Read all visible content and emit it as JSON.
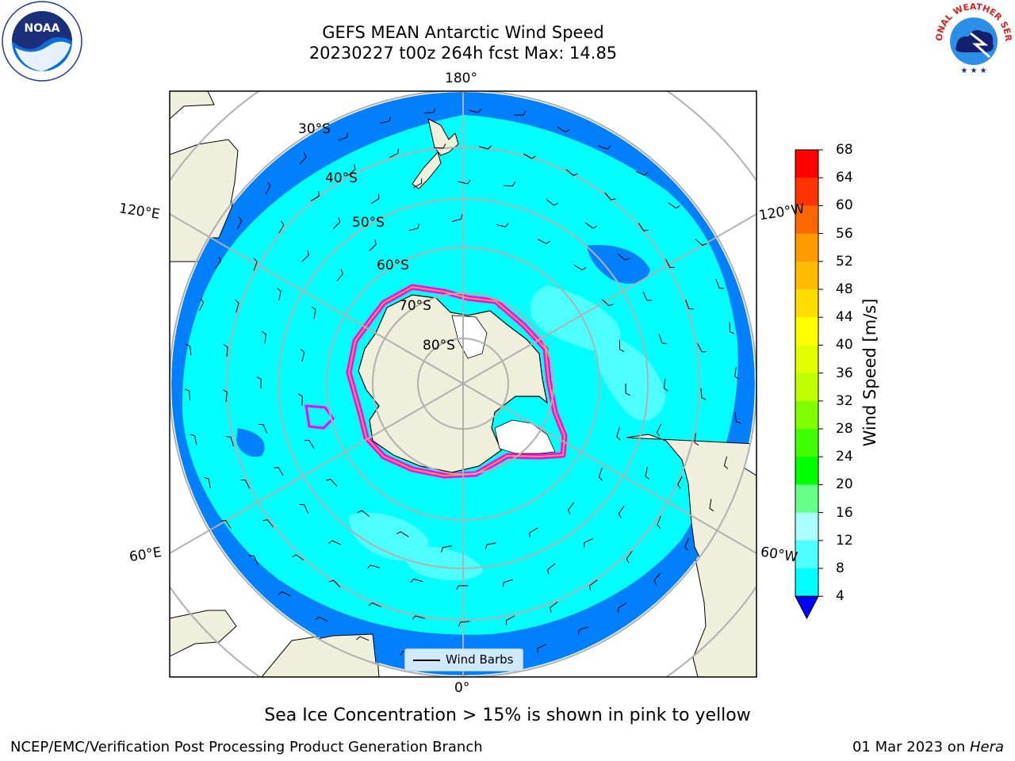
{
  "title": {
    "line1": "GEFS MEAN Antarctic Wind Speed",
    "line2": "20230227 t00z 264h fcst   Max: 14.85"
  },
  "logos": {
    "left": "noa-logo-icon",
    "left_text": "NOAA",
    "right": "nws-logo-icon",
    "right_text": "NATIONAL WEATHER SERVICE"
  },
  "map": {
    "projection": "south-polar-stereographic",
    "lon_labels": {
      "top": "180°",
      "bottom": "0°",
      "upper_left": "120°E",
      "upper_right": "120°W",
      "lower_left": "60°E",
      "lower_right": "60°W"
    },
    "lat_labels": [
      "30°S",
      "40°S",
      "50°S",
      "60°S",
      "70°S",
      "80°S"
    ],
    "colors": {
      "land": "#efefdb",
      "ocean_low": "#0080ff",
      "ocean_mid": "#00ffff",
      "ocean_high": "#4dffff",
      "sea_ice": "#ff00ff",
      "grid": "#b0b0b0"
    },
    "legend_label": "Wind Barbs"
  },
  "colorbar": {
    "label": "Wind Speed [m/s]",
    "ticks": [
      "68",
      "64",
      "60",
      "56",
      "52",
      "48",
      "44",
      "40",
      "36",
      "32",
      "28",
      "24",
      "20",
      "16",
      "12",
      "8",
      "4"
    ],
    "colors": [
      "#ff0000",
      "#ff3300",
      "#ff6600",
      "#ff9900",
      "#ffbb00",
      "#ffdd00",
      "#ffff00",
      "#e0ff00",
      "#c0ff00",
      "#80ff00",
      "#40ff00",
      "#00ff00",
      "#66ff88",
      "#aaffff",
      "#4dffff",
      "#00ffff",
      "#0080ff"
    ],
    "under_color": "#0000ff"
  },
  "caption": "Sea Ice Concentration > 15% is shown in pink to yellow",
  "footer": {
    "left": "NCEP/EMC/Verification Post Processing Product Generation Branch",
    "right_prefix": "01 Mar 2023 on ",
    "right_host": "Hera"
  }
}
